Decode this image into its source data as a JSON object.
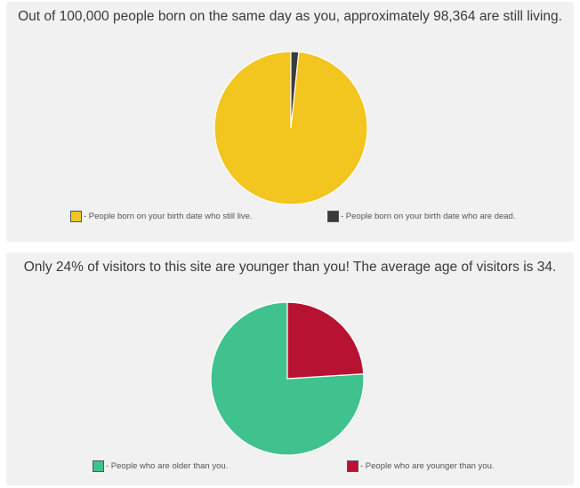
{
  "survival": {
    "headline": "Out of 100,000 people born on the same day as you, approximately 98,364 are still living.",
    "legend": [
      {
        "label": "- People born on your birth date who still live.",
        "color": "#F2C51F"
      },
      {
        "label": "- People born on your birth date who are dead.",
        "color": "#3B3B3B"
      }
    ]
  },
  "visitors": {
    "headline": "Only 24% of visitors to this site are younger than you! The average age of visitors is 34.",
    "legend": [
      {
        "label": "- People who are older than you.",
        "color": "#40C28F"
      },
      {
        "label": "- People who are younger than you.",
        "color": "#B81232"
      }
    ]
  },
  "chart_data": [
    {
      "type": "pie",
      "title": "Out of 100,000 people born on the same day as you, approximately 98,364 are still living.",
      "categories": [
        "- People born on your birth date who still live.",
        "- People born on your birth date who are dead."
      ],
      "values": [
        98364,
        1636
      ],
      "colors": [
        "#F2C51F",
        "#3B3B3B"
      ],
      "start": "top",
      "direction": "counterclockwise",
      "legend_position": "bottom"
    },
    {
      "type": "pie",
      "title": "Only 24% of visitors to this site are younger than you! The average age of visitors is 34.",
      "categories": [
        "- People who are older than you.",
        "- People who are younger than you."
      ],
      "values": [
        76,
        24
      ],
      "colors": [
        "#40C28F",
        "#B81232"
      ],
      "start": "top",
      "direction": "counterclockwise",
      "legend_position": "bottom"
    }
  ]
}
